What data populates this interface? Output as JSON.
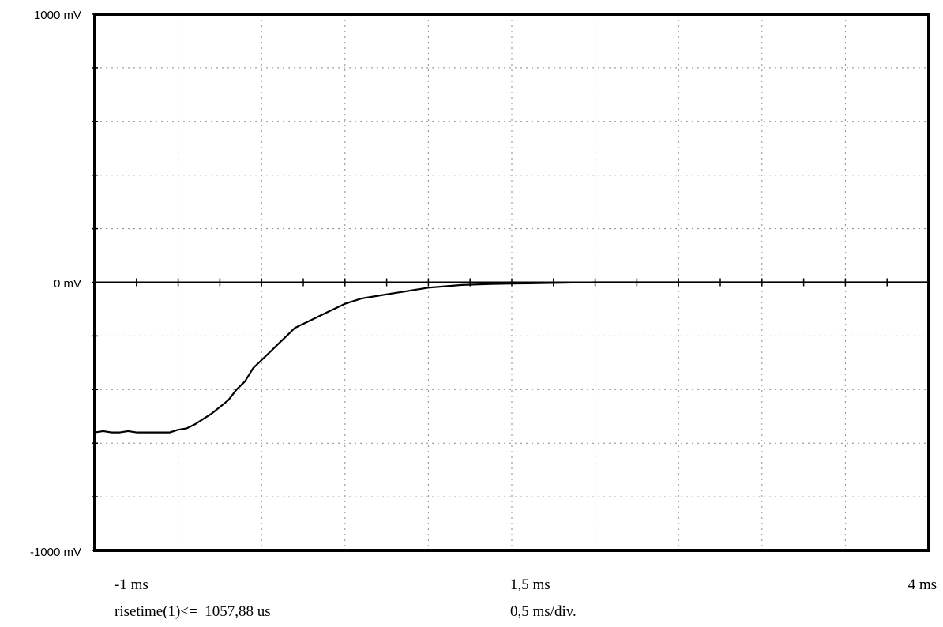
{
  "chart_data": {
    "type": "line",
    "title": "",
    "xlabel": "",
    "ylabel": "",
    "xlim": [
      -1.0,
      4.0
    ],
    "ylim": [
      -1000,
      1000
    ],
    "grid": true,
    "x_divisions": 10,
    "y_divisions": 10,
    "y_tick_labels": [
      "1000 mV",
      "0 mV",
      "-1000 mV"
    ],
    "x_tick_labels": [
      "-1 ms",
      "1,5 ms",
      "4 ms"
    ],
    "annotations": {
      "measurement": "risetime(1)<=  1057,88 us",
      "timebase": "0,5 ms/div."
    },
    "series": [
      {
        "x": [
          -1.0,
          -0.95,
          -0.9,
          -0.85,
          -0.8,
          -0.75,
          -0.7,
          -0.65,
          -0.6,
          -0.55,
          -0.5,
          -0.45,
          -0.4,
          -0.35,
          -0.3,
          -0.25,
          -0.2,
          -0.15,
          -0.1,
          -0.05,
          0.0,
          0.05,
          0.1,
          0.15,
          0.2,
          0.25,
          0.3,
          0.35,
          0.4,
          0.45,
          0.5,
          0.55,
          0.6,
          0.7,
          0.8,
          0.9,
          1.0,
          1.1,
          1.2,
          1.3,
          1.4,
          1.5,
          1.6,
          1.7,
          1.8,
          1.9,
          2.0,
          2.1,
          2.2,
          2.3,
          2.5,
          2.7,
          3.0,
          3.3,
          3.6,
          4.0
        ],
        "values": [
          -560,
          -555,
          -560,
          -560,
          -555,
          -560,
          -560,
          -560,
          -560,
          -560,
          -550,
          -545,
          -530,
          -510,
          -490,
          -465,
          -440,
          -400,
          -370,
          -320,
          -290,
          -260,
          -230,
          -200,
          -170,
          -155,
          -140,
          -125,
          -110,
          -95,
          -80,
          -70,
          -60,
          -50,
          -40,
          -30,
          -20,
          -15,
          -10,
          -8,
          -6,
          -5,
          -4,
          -3,
          -2,
          -1,
          0,
          0,
          0,
          0,
          0,
          0,
          0,
          0,
          0,
          0
        ]
      }
    ]
  }
}
